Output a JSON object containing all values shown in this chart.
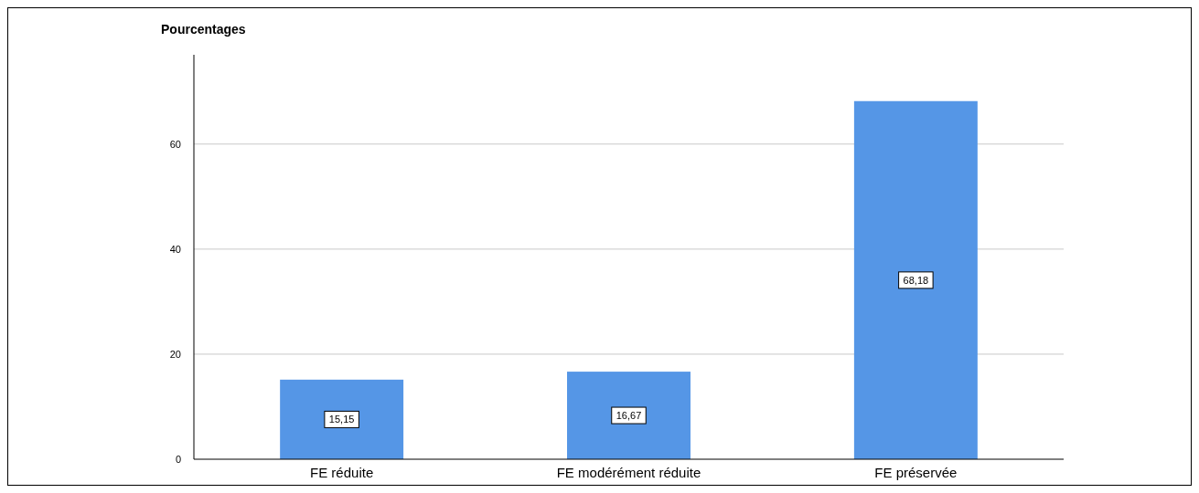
{
  "chart_data": {
    "type": "bar",
    "ylabel": "Pourcentages",
    "categories": [
      "FE réduite",
      "FE modérément réduite",
      "FE préservée"
    ],
    "values": [
      15.15,
      16.67,
      68.18
    ],
    "value_labels": [
      "15,15",
      "16,67",
      "68,18"
    ],
    "color": "#5596e6",
    "ylim": [
      0,
      77
    ],
    "yticks": [
      0,
      20,
      40,
      60
    ],
    "grid": "y"
  }
}
